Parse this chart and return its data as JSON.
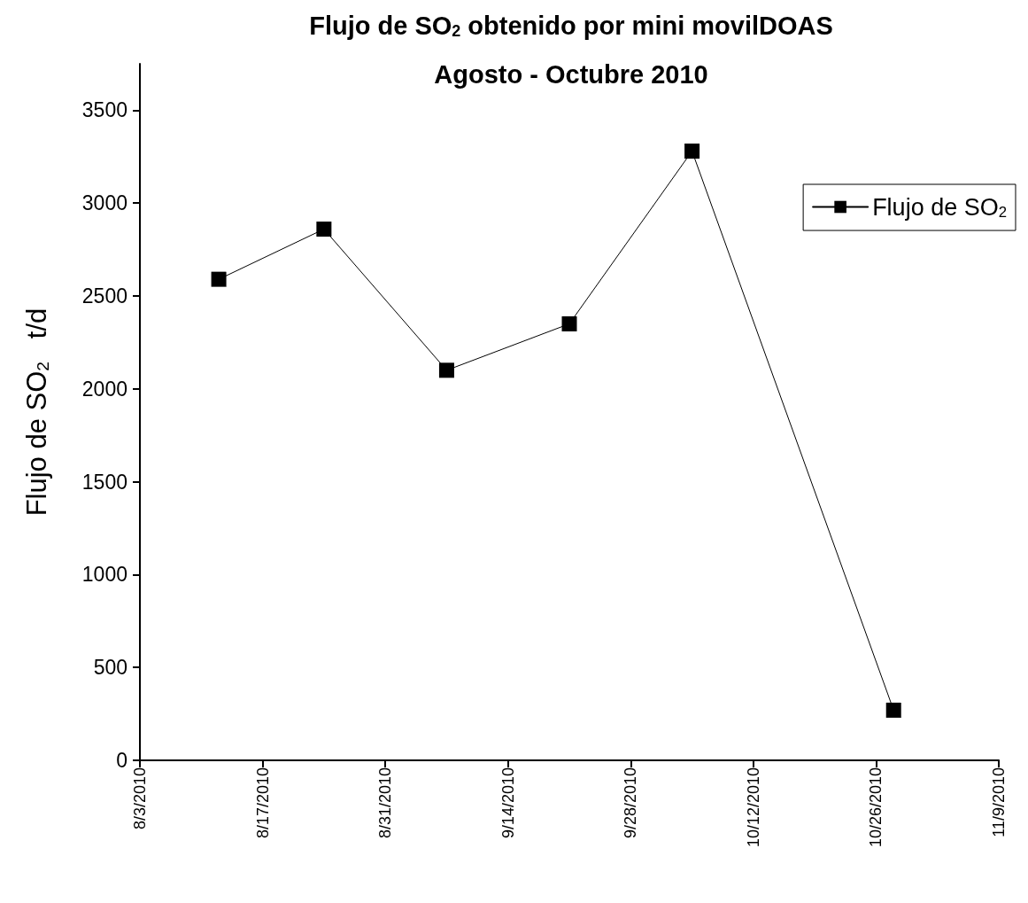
{
  "chart_data": {
    "type": "line",
    "title": "Flujo de SO$_{2}$ obtenido por mini movilDOAS",
    "subtitle": "Agosto - Octubre 2010",
    "ylabel": "Flujo de SO$_{2}$   t/d",
    "x": [
      "2010-08-12",
      "2010-08-24",
      "2010-09-07",
      "2010-09-21",
      "2010-10-05",
      "2010-10-28"
    ],
    "series": [
      {
        "name": "Flujo de SO$_{2}$",
        "color": "#000000",
        "values": [
          2590,
          2860,
          2100,
          2350,
          3280,
          270
        ]
      }
    ],
    "xlim": [
      "2010-08-03",
      "2010-11-09"
    ],
    "xticks": [
      {
        "value": "2010-08-03",
        "label": "8/3/2010"
      },
      {
        "value": "2010-08-17",
        "label": "8/17/2010"
      },
      {
        "value": "2010-08-31",
        "label": "8/31/2010"
      },
      {
        "value": "2010-09-14",
        "label": "9/14/2010"
      },
      {
        "value": "2010-09-28",
        "label": "9/28/2010"
      },
      {
        "value": "2010-10-12",
        "label": "10/12/2010"
      },
      {
        "value": "2010-10-26",
        "label": "10/26/2010"
      },
      {
        "value": "2010-11-09",
        "label": "11/9/2010"
      }
    ],
    "ylim": [
      0,
      3750
    ],
    "yticks": [
      0,
      500,
      1000,
      1500,
      2000,
      2500,
      3000,
      3500
    ],
    "grid": false,
    "legend": "top right",
    "marker": "square",
    "line_style": "solid"
  }
}
